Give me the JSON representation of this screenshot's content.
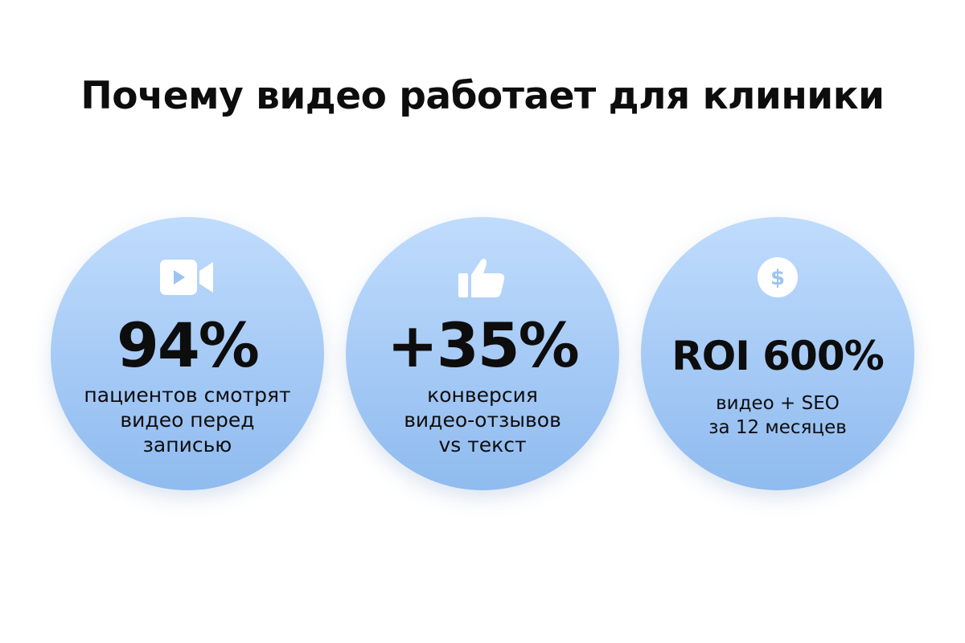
{
  "title": "Почему видео работает для клиники",
  "colors": {
    "circle_top": "#c0dcfc",
    "circle_bottom": "#8fbbef",
    "icon": "#ffffff",
    "icon_accent": "#8fbbef",
    "text": "#0d0d0d"
  },
  "cards": [
    {
      "icon": "video-camera-icon",
      "value": "94%",
      "lines": [
        "пациентов смотрят",
        "видео перед",
        "записью"
      ]
    },
    {
      "icon": "thumbs-up-icon",
      "value": "+35%",
      "lines": [
        "конверсия",
        "видео-отзывов",
        "vs текст"
      ]
    },
    {
      "icon": "dollar-coin-icon",
      "value": "ROI 600%",
      "lines": [
        "видео + SEO",
        "за 12 месяцев"
      ]
    }
  ]
}
